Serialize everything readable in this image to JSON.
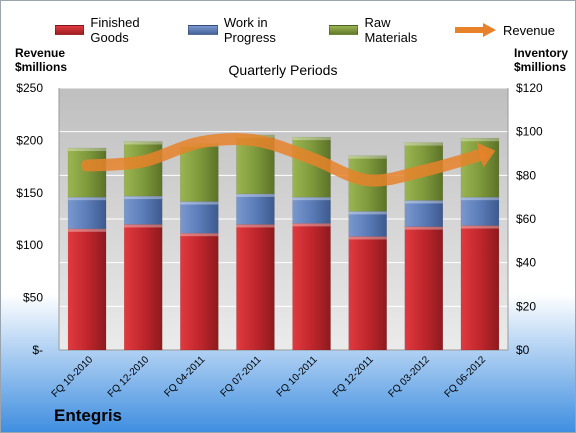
{
  "chart_data": {
    "type": "bar",
    "stacked": true,
    "title": "Quarterly Periods",
    "categories": [
      "FQ 10-2010",
      "FQ 12-2010",
      "FQ 04-2011",
      "FQ 07-2011",
      "FQ 10-2011",
      "FQ 12-2011",
      "FQ 03-2012",
      "FQ 06-2012"
    ],
    "series": [
      {
        "name": "Finished Goods",
        "axis": "right",
        "color": "#c0272d",
        "values": [
          55.5,
          57.5,
          53.5,
          57.5,
          58,
          52,
          56.5,
          57
        ]
      },
      {
        "name": "Work in Progress",
        "axis": "right",
        "color": "#5b7cb8",
        "values": [
          14.5,
          13,
          14.5,
          14,
          12,
          11.5,
          12,
          13
        ]
      },
      {
        "name": "Raw Materials",
        "axis": "right",
        "color": "#7f9a3c",
        "values": [
          22.5,
          25,
          26.5,
          27,
          27.5,
          25.5,
          26.5,
          27
        ]
      }
    ],
    "line": {
      "name": "Revenue",
      "axis": "left",
      "color": "#e8822a",
      "values": [
        176,
        180,
        198,
        200,
        183,
        162,
        171,
        186
      ]
    },
    "left_axis": {
      "label_line1": "Revenue",
      "label_line2": "$millions",
      "min": 0,
      "max": 250,
      "ticks": [
        "$-",
        "$50",
        "$100",
        "$150",
        "$200",
        "$250"
      ]
    },
    "right_axis": {
      "label_line1": "Inventory",
      "label_line2": "$millions",
      "min": 0,
      "max": 120,
      "ticks": [
        "$0",
        "$20",
        "$40",
        "$60",
        "$80",
        "$100",
        "$120"
      ]
    },
    "grid": true,
    "legend": "top"
  },
  "legend": {
    "items": [
      {
        "label": "Finished Goods",
        "color": "#c0272d"
      },
      {
        "label": "Work in Progress",
        "color": "#5b7cb8"
      },
      {
        "label": "Raw Materials",
        "color": "#7f9a3c"
      }
    ],
    "revenue_label": "Revenue"
  },
  "company": "Entegris"
}
